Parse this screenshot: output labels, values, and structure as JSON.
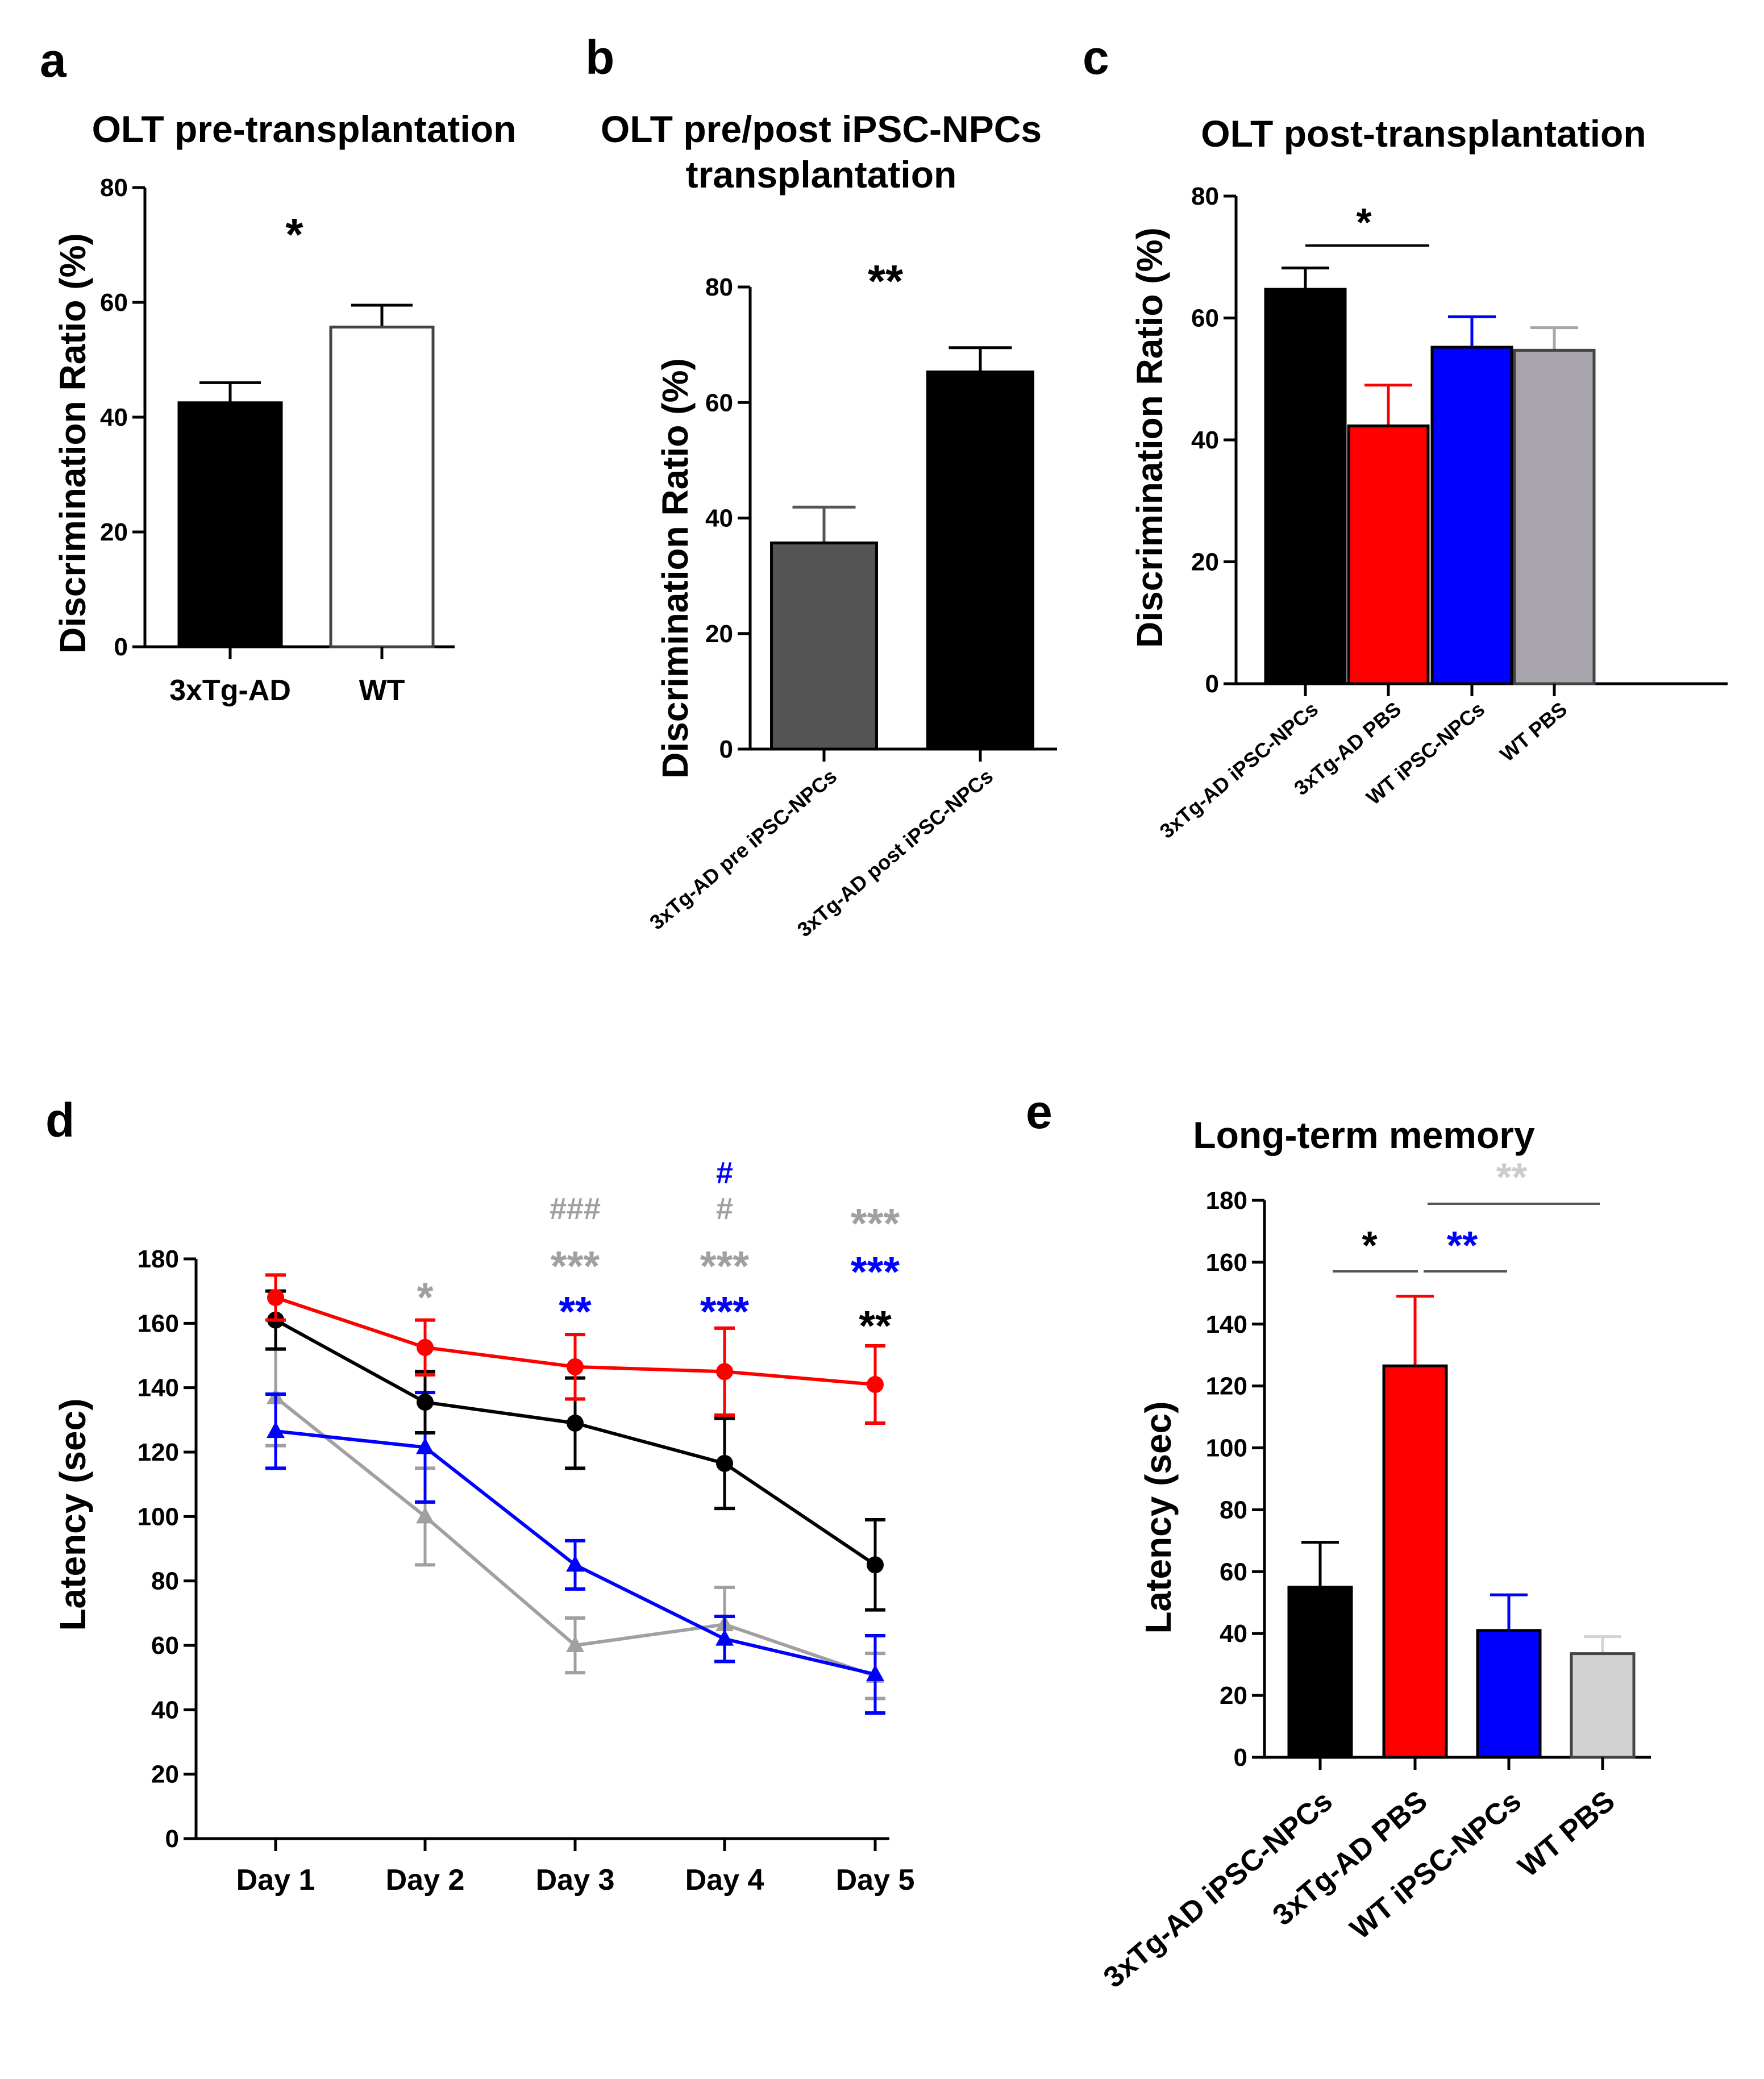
{
  "chart_data": [
    {
      "panel": "a",
      "type": "bar",
      "title": "OLT pre-transplantation",
      "ylabel": "Discrimination Ratio (%)",
      "ylim": [
        0,
        80
      ],
      "yticks": [
        0,
        20,
        40,
        60,
        80
      ],
      "categories": [
        "3xTg-AD",
        "WT"
      ],
      "values": [
        42.5,
        55.7
      ],
      "errors": [
        3.5,
        3.8
      ],
      "colors": [
        "#000000",
        "#ffffff"
      ],
      "annotations": [
        {
          "text": "*",
          "color": "#000000"
        }
      ]
    },
    {
      "panel": "b",
      "type": "bar",
      "title": "OLT pre/post iPSC-NPCs",
      "title2": "transplantation",
      "ylabel": "Discrimination Ratio (%)",
      "ylim": [
        0,
        80
      ],
      "yticks": [
        0,
        20,
        40,
        60,
        80
      ],
      "categories": [
        "3xTg-AD pre iPSC-NPCs",
        "3xTg-AD post iPSC-NPCs"
      ],
      "values": [
        35.7,
        65.3
      ],
      "errors": [
        6.2,
        4.2
      ],
      "colors": [
        "#555555",
        "#000000"
      ],
      "annotations": [
        {
          "text": "**",
          "color": "#000000"
        }
      ]
    },
    {
      "panel": "c",
      "type": "bar",
      "title": "OLT post-transplantation",
      "ylabel": "Discrimination Ratio (%)",
      "ylim": [
        0,
        80
      ],
      "yticks": [
        0,
        20,
        40,
        60,
        80
      ],
      "categories": [
        "3xTg-AD iPSC-NPCs",
        "3xTg-AD PBS",
        "WT iPSC-NPCs",
        "WT PBS"
      ],
      "values": [
        64.7,
        42.3,
        55.2,
        54.7
      ],
      "errors": [
        3.5,
        6.7,
        5.0,
        3.7
      ],
      "colors": [
        "#000000",
        "#ff0000",
        "#0000ff",
        "#a7a5ab"
      ],
      "annotations": [
        {
          "text": "*",
          "color": "#000000"
        }
      ]
    },
    {
      "panel": "d",
      "type": "line",
      "ylabel": "Latency (sec)",
      "ylim": [
        0,
        180
      ],
      "yticks": [
        0,
        20,
        40,
        60,
        80,
        100,
        120,
        140,
        160,
        180
      ],
      "categories": [
        "Day 1",
        "Day 2",
        "Day 3",
        "Day 4",
        "Day 5"
      ],
      "series": [
        {
          "name": "3xTg-AD PBS",
          "color": "#ff0000",
          "marker": "circle",
          "values": [
            168,
            152.5,
            146.5,
            145,
            141
          ],
          "errors": [
            7,
            8.5,
            10,
            13.5,
            12
          ]
        },
        {
          "name": "3xTg-AD iPSC-NPCs",
          "color": "#000000",
          "marker": "circle",
          "values": [
            161,
            135.5,
            129,
            116.5,
            85
          ],
          "errors": [
            9,
            9.5,
            14,
            14,
            14
          ]
        },
        {
          "name": "WT iPSC-NPCs",
          "color": "#0000ff",
          "marker": "triangle",
          "values": [
            126.5,
            121.5,
            85,
            62,
            51
          ],
          "errors": [
            11.5,
            17,
            7.5,
            7,
            12
          ]
        },
        {
          "name": "WT PBS",
          "color": "#a0a0a0",
          "marker": "triangle",
          "values": [
            137,
            100,
            60,
            66.5,
            50.5
          ],
          "errors": [
            15,
            15,
            8.5,
            11.5,
            7
          ]
        }
      ],
      "annotations": [
        {
          "day": "Day 2",
          "items": [
            {
              "text": "*",
              "color": "#a0a0a0"
            }
          ]
        },
        {
          "day": "Day 3",
          "items": [
            {
              "text": "###",
              "color": "#a0a0a0"
            },
            {
              "text": "***",
              "color": "#a0a0a0"
            },
            {
              "text": "**",
              "color": "#0000ff"
            }
          ]
        },
        {
          "day": "Day 4",
          "items": [
            {
              "text": "#",
              "color": "#0000ff"
            },
            {
              "text": "#",
              "color": "#a0a0a0"
            },
            {
              "text": "***",
              "color": "#a0a0a0"
            },
            {
              "text": "***",
              "color": "#0000ff"
            }
          ]
        },
        {
          "day": "Day 5",
          "items": [
            {
              "text": "***",
              "color": "#a0a0a0"
            },
            {
              "text": "***",
              "color": "#0000ff"
            },
            {
              "text": "**",
              "color": "#000000"
            }
          ]
        }
      ]
    },
    {
      "panel": "e",
      "type": "bar",
      "title": "Long-term memory",
      "ylabel": "Latency (sec)",
      "ylim": [
        0,
        180
      ],
      "yticks": [
        0,
        20,
        40,
        60,
        80,
        100,
        120,
        140,
        160,
        180
      ],
      "categories": [
        "3xTg-AD iPSC-NPCs",
        "3xTg-AD PBS",
        "WT iPSC-NPCs",
        "WT PBS"
      ],
      "values": [
        55,
        126.5,
        41,
        33.5
      ],
      "errors": [
        14.5,
        22.5,
        11.5,
        5.5
      ],
      "colors": [
        "#000000",
        "#ff0000",
        "#0000ff",
        "#d3d3d3"
      ],
      "annotations": [
        {
          "text": "*",
          "color": "#000000"
        },
        {
          "text": "**",
          "color": "#0000ff"
        },
        {
          "text": "**",
          "color": "#cccccc"
        }
      ]
    }
  ]
}
